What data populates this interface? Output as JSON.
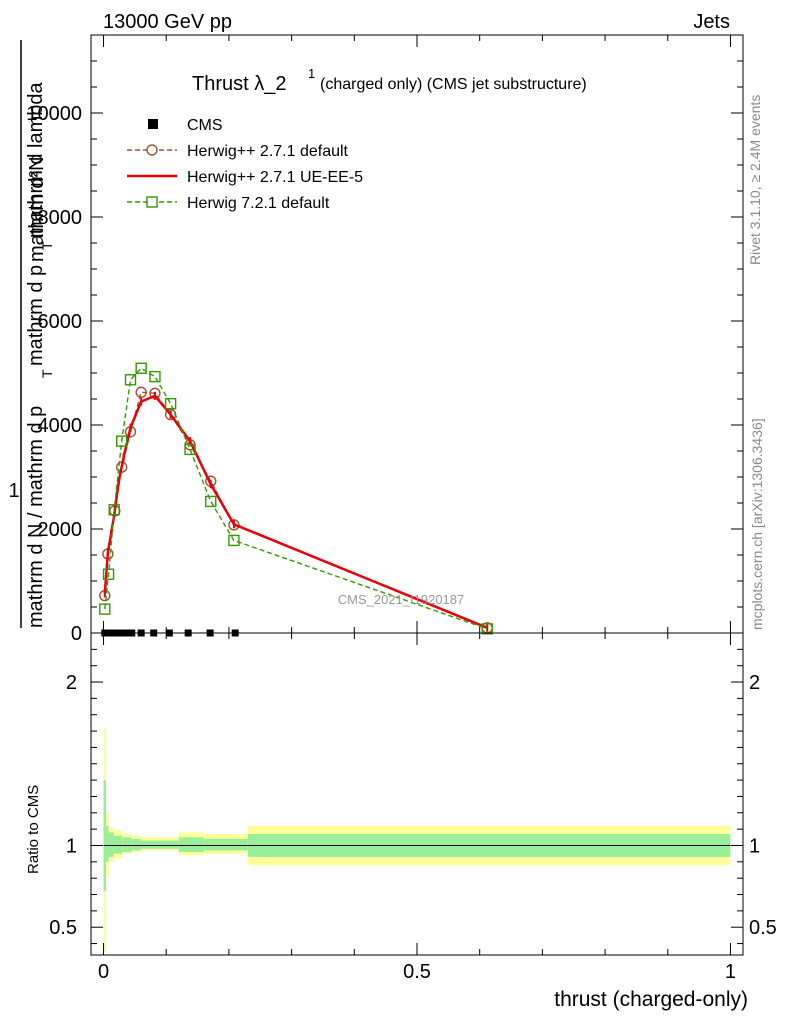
{
  "header": {
    "left": "13000 GeV pp",
    "right": "Jets"
  },
  "side_text": {
    "rivet": "Rivet 3.1.10, ≥ 2.4M events",
    "mcplots": "mcplots.cern.ch [arXiv:1306.3436]"
  },
  "chart_data": {
    "type": "line",
    "title": "Thrust λ_2",
    "title_sup": "1",
    "subtitle": "(charged only) (CMS jet substructure)",
    "watermark": "CMS_2021_I1920187",
    "xlabel": "thrust (charged-only)",
    "ylabel_main": "mathrm d N / mathrm d p_T mathrm d p_T mathrm d lambda",
    "ylabel_main_parts": {
      "one": "1",
      "numer": "mathrm d²N",
      "lower_denom": "mathrm d N / mathrm d p",
      "lower_sub": "T",
      "upper_denom": "mathrm d p",
      "upper_sub": "T",
      "upper_tail": "mathrm d lambda"
    },
    "ylabel_ratio": "Ratio to CMS",
    "xlim": [
      -0.02,
      1.02
    ],
    "ylim_main": [
      0,
      11500
    ],
    "ylim_ratio": [
      0.33,
      2.3
    ],
    "x_ticks": [
      {
        "v": 0,
        "label": "0"
      },
      {
        "v": 0.5,
        "label": "0.5"
      },
      {
        "v": 1,
        "label": "1"
      }
    ],
    "y_ticks_main": [
      {
        "v": 0,
        "label": "0"
      },
      {
        "v": 2000,
        "label": "2000"
      },
      {
        "v": 4000,
        "label": "4000"
      },
      {
        "v": 6000,
        "label": "6000"
      },
      {
        "v": 8000,
        "label": "8000"
      },
      {
        "v": 10000,
        "label": "10000"
      }
    ],
    "y_ticks_ratio": [
      {
        "v": 0.5,
        "label": "0.5"
      },
      {
        "v": 1,
        "label": "1"
      },
      {
        "v": 2,
        "label": "2"
      }
    ],
    "legend_position": "top-left",
    "cms": {
      "name": "CMS",
      "x": [
        0.002,
        0.006,
        0.012,
        0.018,
        0.026,
        0.035,
        0.045,
        0.06,
        0.08,
        0.105,
        0.135,
        0.17,
        0.21
      ],
      "y": [
        0,
        0,
        0,
        0,
        0,
        0,
        0,
        0,
        0,
        0,
        0,
        0,
        0
      ]
    },
    "series": [
      {
        "name": "Herwig++ 2.7.1 default",
        "color": "#a0522d",
        "style": "dashed",
        "marker": "circle",
        "x": [
          0.002,
          0.007,
          0.018,
          0.029,
          0.043,
          0.06,
          0.082,
          0.107,
          0.138,
          0.171,
          0.208,
          0.612
        ],
        "y": [
          720,
          1520,
          2350,
          3190,
          3870,
          4630,
          4610,
          4200,
          3620,
          2920,
          2080,
          100
        ]
      },
      {
        "name": "Herwig++ 2.7.1 UE-EE-5",
        "color": "#e8000b",
        "style": "solid",
        "marker": "none",
        "x": [
          0.002,
          0.007,
          0.012,
          0.018,
          0.024,
          0.032,
          0.043,
          0.06,
          0.082,
          0.107,
          0.138,
          0.171,
          0.208,
          0.612
        ],
        "y": [
          760,
          1560,
          1900,
          2350,
          2900,
          3380,
          3950,
          4450,
          4560,
          4200,
          3690,
          2860,
          2090,
          100
        ]
      },
      {
        "name": "Herwig 7.2.1 default",
        "color": "#339900",
        "style": "dashed",
        "marker": "square",
        "x": [
          0.002,
          0.008,
          0.017,
          0.029,
          0.043,
          0.06,
          0.082,
          0.107,
          0.138,
          0.171,
          0.208,
          0.612
        ],
        "y": [
          460,
          1130,
          2370,
          3690,
          4870,
          5090,
          4930,
          4410,
          3530,
          2530,
          1780,
          80
        ]
      }
    ],
    "ratio_bands": {
      "edges": [
        0,
        0.004,
        0.008,
        0.016,
        0.03,
        0.045,
        0.06,
        0.12,
        0.16,
        0.23,
        1.0
      ],
      "green": [
        [
          0.72,
          1.4
        ],
        [
          0.9,
          1.12
        ],
        [
          0.93,
          1.08
        ],
        [
          0.95,
          1.06
        ],
        [
          0.96,
          1.05
        ],
        [
          0.97,
          1.04
        ],
        [
          0.98,
          1.03
        ],
        [
          0.96,
          1.05
        ],
        [
          0.97,
          1.04
        ],
        [
          0.93,
          1.07
        ]
      ],
      "yellow": [
        [
          0.35,
          1.72
        ],
        [
          0.8,
          1.2
        ],
        [
          0.9,
          1.11
        ],
        [
          0.92,
          1.09
        ],
        [
          0.95,
          1.07
        ],
        [
          0.96,
          1.06
        ],
        [
          0.97,
          1.05
        ],
        [
          0.94,
          1.08
        ],
        [
          0.95,
          1.07
        ],
        [
          0.88,
          1.12
        ]
      ]
    }
  }
}
